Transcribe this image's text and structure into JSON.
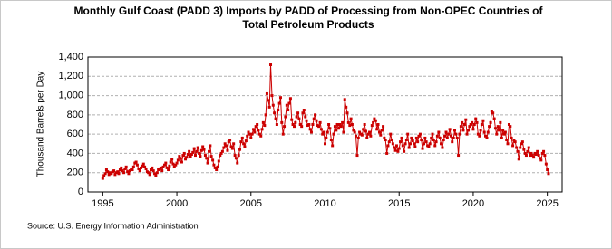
{
  "chart_data": {
    "type": "line",
    "title": "Monthly Gulf Coast (PADD 3) Imports by PADD of Processing from Non-OPEC Countries of",
    "subtitle": "Total Petroleum Products",
    "y_label": "Thousand Barrels per Day",
    "source": "Source: U.S. Energy Information Administration",
    "xlim": [
      1994,
      2026
    ],
    "xticks": [
      1995,
      2000,
      2005,
      2010,
      2015,
      2020,
      2025
    ],
    "ylim": [
      0,
      1400
    ],
    "yticks": [
      0,
      200,
      400,
      600,
      800,
      {
        "value": 1000,
        "label": "1,000"
      },
      {
        "value": 1200,
        "label": "1,200"
      },
      {
        "value": 1400,
        "label": "1,400"
      }
    ],
    "grid": true,
    "color": "#cc0000",
    "x": [
      1995,
      1995.08,
      1995.17,
      1995.25,
      1995.33,
      1995.42,
      1995.5,
      1995.58,
      1995.67,
      1995.75,
      1995.83,
      1995.92,
      1996,
      1996.08,
      1996.17,
      1996.25,
      1996.33,
      1996.42,
      1996.5,
      1996.58,
      1996.67,
      1996.75,
      1996.83,
      1996.92,
      1997,
      1997.08,
      1997.17,
      1997.25,
      1997.33,
      1997.42,
      1997.5,
      1997.58,
      1997.67,
      1997.75,
      1997.83,
      1997.92,
      1998,
      1998.08,
      1998.17,
      1998.25,
      1998.33,
      1998.42,
      1998.5,
      1998.58,
      1998.67,
      1998.75,
      1998.83,
      1998.92,
      1999,
      1999.08,
      1999.17,
      1999.25,
      1999.33,
      1999.42,
      1999.5,
      1999.58,
      1999.67,
      1999.75,
      1999.83,
      1999.92,
      2000,
      2000.08,
      2000.17,
      2000.25,
      2000.33,
      2000.42,
      2000.5,
      2000.58,
      2000.67,
      2000.75,
      2000.83,
      2000.92,
      2001,
      2001.08,
      2001.17,
      2001.25,
      2001.33,
      2001.42,
      2001.5,
      2001.58,
      2001.67,
      2001.75,
      2001.83,
      2001.92,
      2002,
      2002.08,
      2002.17,
      2002.25,
      2002.33,
      2002.42,
      2002.5,
      2002.58,
      2002.67,
      2002.75,
      2002.83,
      2002.92,
      2003,
      2003.08,
      2003.17,
      2003.25,
      2003.33,
      2003.42,
      2003.5,
      2003.58,
      2003.67,
      2003.75,
      2003.83,
      2003.92,
      2004,
      2004.08,
      2004.17,
      2004.25,
      2004.33,
      2004.42,
      2004.5,
      2004.58,
      2004.67,
      2004.75,
      2004.83,
      2004.92,
      2005,
      2005.08,
      2005.17,
      2005.25,
      2005.33,
      2005.42,
      2005.5,
      2005.58,
      2005.67,
      2005.75,
      2005.83,
      2005.92,
      2006,
      2006.08,
      2006.17,
      2006.25,
      2006.33,
      2006.42,
      2006.5,
      2006.58,
      2006.67,
      2006.75,
      2006.83,
      2006.92,
      2007,
      2007.08,
      2007.17,
      2007.25,
      2007.33,
      2007.42,
      2007.5,
      2007.58,
      2007.67,
      2007.75,
      2007.83,
      2007.92,
      2008,
      2008.08,
      2008.17,
      2008.25,
      2008.33,
      2008.42,
      2008.5,
      2008.58,
      2008.67,
      2008.75,
      2008.83,
      2008.92,
      2009,
      2009.08,
      2009.17,
      2009.25,
      2009.33,
      2009.42,
      2009.5,
      2009.58,
      2009.67,
      2009.75,
      2009.83,
      2009.92,
      2010,
      2010.08,
      2010.17,
      2010.25,
      2010.33,
      2010.42,
      2010.5,
      2010.58,
      2010.67,
      2010.75,
      2010.83,
      2010.92,
      2011,
      2011.08,
      2011.17,
      2011.25,
      2011.33,
      2011.42,
      2011.5,
      2011.58,
      2011.67,
      2011.75,
      2011.83,
      2011.92,
      2012,
      2012.08,
      2012.17,
      2012.25,
      2012.33,
      2012.42,
      2012.5,
      2012.58,
      2012.67,
      2012.75,
      2012.83,
      2012.92,
      2013,
      2013.08,
      2013.17,
      2013.25,
      2013.33,
      2013.42,
      2013.5,
      2013.58,
      2013.67,
      2013.75,
      2013.83,
      2013.92,
      2014,
      2014.08,
      2014.17,
      2014.25,
      2014.33,
      2014.42,
      2014.5,
      2014.58,
      2014.67,
      2014.75,
      2014.83,
      2014.92,
      2015,
      2015.08,
      2015.17,
      2015.25,
      2015.33,
      2015.42,
      2015.5,
      2015.58,
      2015.67,
      2015.75,
      2015.83,
      2015.92,
      2016,
      2016.08,
      2016.17,
      2016.25,
      2016.33,
      2016.42,
      2016.5,
      2016.58,
      2016.67,
      2016.75,
      2016.83,
      2016.92,
      2017,
      2017.08,
      2017.17,
      2017.25,
      2017.33,
      2017.42,
      2017.5,
      2017.58,
      2017.67,
      2017.75,
      2017.83,
      2017.92,
      2018,
      2018.08,
      2018.17,
      2018.25,
      2018.33,
      2018.42,
      2018.5,
      2018.58,
      2018.67,
      2018.75,
      2018.83,
      2018.92,
      2019,
      2019.08,
      2019.17,
      2019.25,
      2019.33,
      2019.42,
      2019.5,
      2019.58,
      2019.67,
      2019.75,
      2019.83,
      2019.92,
      2020,
      2020.08,
      2020.17,
      2020.25,
      2020.33,
      2020.42,
      2020.5,
      2020.58,
      2020.67,
      2020.75,
      2020.83,
      2020.92,
      2021,
      2021.08,
      2021.17,
      2021.25,
      2021.33,
      2021.42,
      2021.5,
      2021.58,
      2021.67,
      2021.75,
      2021.83,
      2021.92,
      2022,
      2022.08,
      2022.17,
      2022.25,
      2022.33,
      2022.42,
      2022.5,
      2022.58,
      2022.67,
      2022.75,
      2022.83,
      2022.92,
      2023,
      2023.08,
      2023.17,
      2023.25,
      2023.33,
      2023.42,
      2023.5,
      2023.58,
      2023.67,
      2023.75,
      2023.83,
      2023.92,
      2024,
      2024.08,
      2024.17,
      2024.25,
      2024.33,
      2024.42,
      2024.5,
      2024.58,
      2024.67,
      2024.75,
      2024.83,
      2024.92,
      2025,
      2025.08
    ],
    "values": [
      140,
      170,
      190,
      230,
      210,
      180,
      200,
      190,
      210,
      220,
      180,
      200,
      210,
      190,
      230,
      250,
      220,
      200,
      240,
      260,
      210,
      190,
      220,
      230,
      230,
      260,
      300,
      310,
      280,
      240,
      220,
      250,
      270,
      290,
      260,
      240,
      210,
      200,
      180,
      230,
      250,
      220,
      190,
      170,
      200,
      230,
      240,
      250,
      220,
      260,
      280,
      300,
      250,
      230,
      270,
      310,
      340,
      290,
      260,
      280,
      300,
      330,
      370,
      350,
      310,
      380,
      400,
      340,
      360,
      390,
      420,
      370,
      390,
      410,
      450,
      380,
      420,
      460,
      400,
      370,
      430,
      470,
      440,
      380,
      350,
      300,
      420,
      480,
      370,
      330,
      280,
      250,
      230,
      260,
      320,
      380,
      400,
      420,
      460,
      500,
      480,
      430,
      520,
      540,
      470,
      450,
      500,
      380,
      350,
      300,
      380,
      440,
      520,
      560,
      500,
      470,
      530,
      580,
      620,
      600,
      560,
      600,
      650,
      620,
      680,
      700,
      640,
      600,
      580,
      650,
      720,
      690,
      800,
      1020,
      950,
      880,
      1320,
      1000,
      900,
      820,
      760,
      700,
      850,
      920,
      980,
      720,
      600,
      680,
      780,
      900,
      850,
      920,
      970,
      750,
      700,
      680,
      720,
      780,
      820,
      760,
      700,
      680,
      820,
      850,
      780,
      740,
      690,
      700,
      650,
      620,
      700,
      760,
      800,
      740,
      690,
      680,
      720,
      650,
      600,
      620,
      500,
      560,
      620,
      700,
      660,
      540,
      480,
      600,
      680,
      640,
      700,
      660,
      700,
      680,
      720,
      620,
      960,
      880,
      820,
      720,
      690,
      760,
      700,
      640,
      620,
      580,
      380,
      560,
      620,
      600,
      590,
      650,
      700,
      630,
      560,
      600,
      620,
      580,
      690,
      720,
      760,
      740,
      650,
      700,
      620,
      590,
      640,
      680,
      560,
      540,
      400,
      480,
      520,
      600,
      540,
      500,
      460,
      430,
      480,
      420,
      450,
      520,
      560,
      480,
      420,
      500,
      540,
      600,
      460,
      500,
      560,
      530,
      500,
      470,
      560,
      520,
      580,
      600,
      540,
      450,
      500,
      560,
      520,
      480,
      470,
      500,
      560,
      600,
      540,
      480,
      520,
      580,
      620,
      560,
      500,
      460,
      540,
      580,
      620,
      560,
      600,
      650,
      580,
      520,
      560,
      640,
      600,
      560,
      380,
      600,
      680,
      720,
      640,
      700,
      750,
      600,
      640,
      680,
      700,
      720,
      650,
      700,
      760,
      720,
      600,
      580,
      640,
      700,
      740,
      620,
      580,
      560,
      620,
      680,
      720,
      840,
      820,
      760,
      660,
      600,
      680,
      640,
      720,
      560,
      640,
      600,
      620,
      540,
      500,
      700,
      680,
      560,
      480,
      540,
      520,
      460,
      420,
      340,
      460,
      500,
      520,
      440,
      400,
      380,
      420,
      460,
      380,
      400,
      380,
      360,
      400,
      390,
      420,
      380,
      350,
      330,
      400,
      420,
      380,
      290,
      230,
      190
    ]
  }
}
